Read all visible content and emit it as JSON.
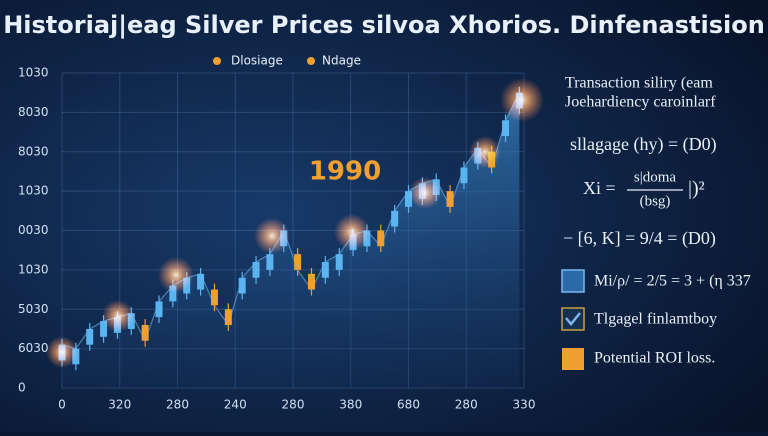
{
  "chart_data": {
    "type": "candlestick",
    "title": "Historiaj|eag Silver Prices silvoa Xhorios. Dinfenastision",
    "legend": [
      "Dlosiage",
      "Ndage"
    ],
    "annotation": "1990",
    "up_color": "#5ab4f0",
    "down_color": "#f0a030",
    "area_color": "#2e6fa8",
    "x": [
      0,
      0.24,
      0.48,
      0.72,
      0.96,
      1.2,
      1.44,
      1.68,
      1.92,
      2.16,
      2.4,
      2.64,
      2.88,
      3.12,
      3.36,
      3.6,
      3.84,
      4.08,
      4.32,
      4.56,
      4.8,
      5.04,
      5.28,
      5.52,
      5.76,
      6.0,
      6.24,
      6.48,
      6.72,
      6.96,
      7.2,
      7.44,
      7.68,
      7.92
    ],
    "open": [
      0.7,
      0.6,
      1.1,
      1.3,
      1.4,
      1.5,
      1.6,
      1.8,
      2.2,
      2.4,
      2.5,
      2.5,
      2.0,
      2.4,
      2.8,
      3.0,
      3.6,
      3.4,
      2.9,
      2.8,
      3.0,
      3.5,
      3.6,
      4.0,
      4.1,
      4.6,
      4.8,
      4.9,
      5.0,
      5.2,
      5.7,
      6.0,
      6.4,
      7.1
    ],
    "close": [
      1.1,
      1.0,
      1.5,
      1.7,
      1.8,
      1.9,
      1.2,
      2.2,
      2.6,
      2.8,
      2.9,
      2.1,
      1.6,
      2.8,
      3.2,
      3.4,
      4.0,
      3.0,
      2.5,
      3.2,
      3.4,
      3.9,
      4.0,
      3.6,
      4.5,
      5.0,
      5.2,
      5.3,
      4.6,
      5.6,
      6.1,
      5.6,
      6.8,
      7.5
    ],
    "high": [
      1.25,
      1.15,
      1.65,
      1.85,
      1.95,
      2.05,
      1.75,
      2.35,
      2.75,
      2.95,
      3.05,
      2.65,
      2.15,
      2.95,
      3.35,
      3.55,
      4.15,
      3.55,
      3.05,
      3.35,
      3.55,
      4.05,
      4.15,
      4.15,
      4.65,
      5.15,
      5.35,
      5.45,
      5.15,
      5.75,
      6.25,
      6.15,
      6.95,
      7.65
    ],
    "low": [
      0.55,
      0.45,
      0.95,
      1.15,
      1.25,
      1.35,
      1.05,
      1.65,
      2.05,
      2.25,
      2.35,
      1.95,
      1.45,
      2.25,
      2.65,
      2.85,
      3.45,
      2.85,
      2.35,
      2.65,
      2.85,
      3.35,
      3.45,
      3.45,
      3.95,
      4.45,
      4.65,
      4.75,
      4.45,
      5.05,
      5.55,
      5.45,
      6.25,
      6.95
    ],
    "xlim": [
      0,
      8
    ],
    "xticks": [
      {
        "value": 0,
        "label": "0"
      },
      {
        "value": 1,
        "label": "320"
      },
      {
        "value": 2,
        "label": "280"
      },
      {
        "value": 3,
        "label": "240"
      },
      {
        "value": 4,
        "label": "280"
      },
      {
        "value": 5,
        "label": "380"
      },
      {
        "value": 6,
        "label": "680"
      },
      {
        "value": 7,
        "label": "280"
      },
      {
        "value": 8,
        "label": "330"
      }
    ],
    "ylim": [
      0,
      8
    ],
    "yticks": [
      {
        "value": 0,
        "label": "0"
      },
      {
        "value": 1,
        "label": "6030"
      },
      {
        "value": 2,
        "label": "5030"
      },
      {
        "value": 3,
        "label": "1030"
      },
      {
        "value": 4,
        "label": "0030"
      },
      {
        "value": 5,
        "label": "1030"
      },
      {
        "value": 6,
        "label": "8030"
      },
      {
        "value": 7,
        "label": "8030"
      },
      {
        "value": 8,
        "label": "1030"
      }
    ],
    "grid": true
  },
  "side_panel": {
    "lines": [
      "Transaction siliry (eam",
      "Joehardiency caroinlarf",
      "sllagage (hy) = (D0)"
    ],
    "formula": {
      "lhs": "Xi =",
      "numerator": "s|doma",
      "denominator": "(bsg)",
      "rhs": "|)²"
    },
    "equation": "− [6, K] = 9/4 = (D0)",
    "items": [
      "Mi/ρ/ = 2/5 = 3 + (η 337",
      "Tlgagel finlamtboy",
      "Potential ROI loss."
    ]
  }
}
